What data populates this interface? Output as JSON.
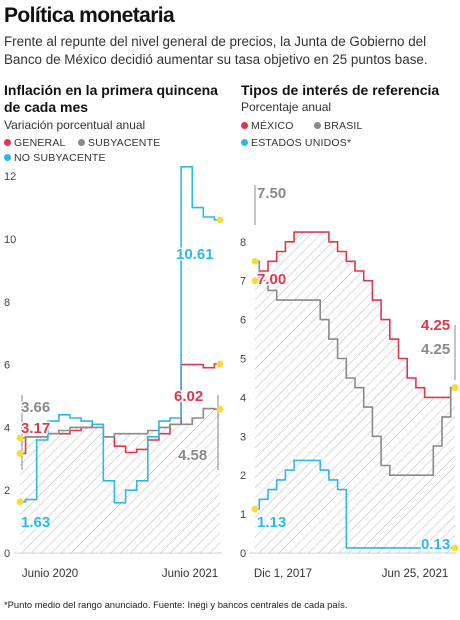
{
  "header": {
    "title": "Política monetaria",
    "subtitle": "Frente al repunte del nivel general de precios, la Junta de Gobierno del Banco de México decidió aumentar su tasa objetivo en 25 puntos base."
  },
  "footnote": "*Punto medio del rango anunciado. Fuente: Inegi y bancos centrales de cada país.",
  "colors": {
    "red": "#e0374f",
    "gray": "#8a8a8a",
    "blue": "#2db9e6",
    "hatch": "#b8b8b8",
    "dot": "#f2dd3c"
  },
  "chart_data": [
    {
      "type": "line",
      "title": "Inflación en la primera quincena de cada mes",
      "ylabel": "Variación porcentual anual",
      "ylim": [
        0,
        12.5
      ],
      "yticks": [
        "0",
        "2",
        "4",
        "6",
        "8",
        "10",
        "12"
      ],
      "x_ticklabels": [
        "Junio 2020",
        "Junio 2021"
      ],
      "legend": [
        "GENERAL",
        "SUBYACENTE",
        "NO SUBYACENTE"
      ],
      "series": [
        {
          "name": "GENERAL",
          "color": "red",
          "start_label": "3.17",
          "end_label": "6.02",
          "values": [
            3.17,
            3.7,
            3.7,
            3.8,
            3.8,
            3.9,
            4.0,
            4.1,
            3.7,
            3.4,
            3.2,
            3.3,
            3.6,
            3.8,
            4.1,
            6.0,
            6.0,
            5.9,
            6.02
          ]
        },
        {
          "name": "SUBYACENTE",
          "color": "gray",
          "start_label": "3.66",
          "end_label": "4.58",
          "values": [
            3.66,
            3.7,
            3.7,
            3.8,
            3.9,
            4.0,
            4.0,
            4.0,
            3.7,
            3.8,
            3.8,
            3.8,
            3.9,
            4.0,
            4.1,
            4.1,
            4.3,
            4.6,
            4.58
          ]
        },
        {
          "name": "NO SUBYACENTE",
          "color": "blue",
          "start_label": "1.63",
          "end_label": "10.61",
          "values": [
            1.63,
            1.7,
            3.6,
            4.2,
            4.4,
            4.3,
            4.2,
            4.1,
            2.3,
            1.6,
            2.0,
            2.3,
            3.7,
            4.2,
            4.3,
            12.3,
            11.0,
            10.7,
            10.61
          ]
        }
      ]
    },
    {
      "type": "line",
      "title": "Tipos de interés de referencia",
      "ylabel": "Porcentaje anual",
      "ylim": [
        0,
        8.5
      ],
      "yticks": [
        "0",
        "1",
        "2",
        "3",
        "4",
        "5",
        "6",
        "7",
        "8"
      ],
      "x_ticklabels": [
        "Dic 1, 2017",
        "Jun 25, 2021"
      ],
      "legend": [
        "MÉXICO",
        "BRASIL",
        "ESTADOS UNIDOS*"
      ],
      "series": [
        {
          "name": "MÉXICO",
          "color": "red",
          "start_label": "7.00",
          "end_label": "4.25",
          "values": [
            7.0,
            7.25,
            7.5,
            7.75,
            8.0,
            8.25,
            8.25,
            8.25,
            8.25,
            8.0,
            7.75,
            7.5,
            7.25,
            7.0,
            6.5,
            6.0,
            5.5,
            5.0,
            4.5,
            4.25,
            4.0,
            4.0,
            4.0,
            4.25
          ]
        },
        {
          "name": "BRASIL",
          "color": "gray",
          "start_label": "7.50",
          "end_label": "4.25",
          "values": [
            7.5,
            7.0,
            6.75,
            6.5,
            6.5,
            6.5,
            6.5,
            6.5,
            6.0,
            5.5,
            5.0,
            4.5,
            4.25,
            3.75,
            3.0,
            2.25,
            2.0,
            2.0,
            2.0,
            2.0,
            2.0,
            2.75,
            3.5,
            4.25
          ]
        },
        {
          "name": "ESTADOS UNIDOS*",
          "color": "blue",
          "start_label": "1.13",
          "end_label": "0.13",
          "values": [
            1.13,
            1.38,
            1.63,
            1.88,
            2.13,
            2.38,
            2.38,
            2.38,
            2.13,
            1.88,
            1.63,
            0.13,
            0.13,
            0.13,
            0.13,
            0.13,
            0.13,
            0.13,
            0.13,
            0.13,
            0.13,
            0.13,
            0.13,
            0.13
          ]
        }
      ]
    }
  ]
}
